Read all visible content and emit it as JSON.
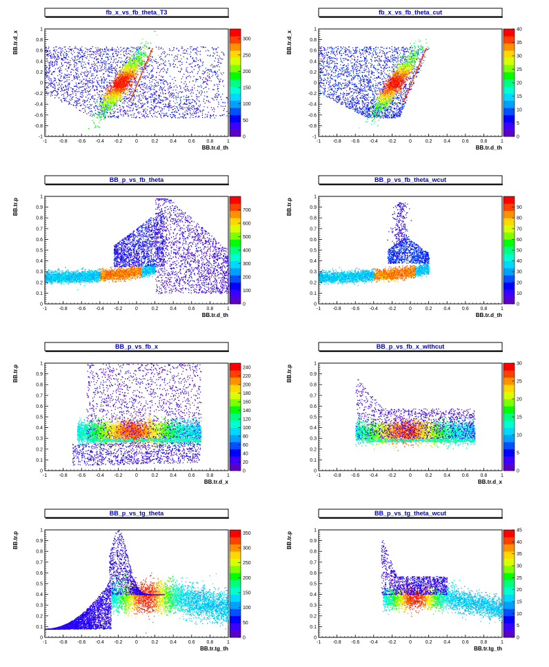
{
  "colors": {
    "title_text": "#0000cc",
    "palette": [
      "#5a00c8",
      "#3c00ff",
      "#0000ff",
      "#0050ff",
      "#00a0ff",
      "#00d8ff",
      "#00ffd0",
      "#00ff80",
      "#00ff00",
      "#80ff00",
      "#d8ff00",
      "#ffd800",
      "#ff9000",
      "#ff4000",
      "#ff0000"
    ]
  },
  "chart_data": [
    {
      "type": "heatmap",
      "title": "fb_x_vs_fb_theta_T3",
      "xlabel": "BB.tr.d_th",
      "ylabel": "BB.tr.d_x",
      "xlim": [
        -1,
        1
      ],
      "ylim": [
        -1,
        1
      ],
      "x_ticks": [
        "-1",
        "-0.8",
        "-0.6",
        "-0.4",
        "-0.2",
        "0",
        "0.2",
        "0.4",
        "0.6",
        "0.8",
        "1"
      ],
      "y_ticks": [
        "-1",
        "-0.8",
        "-0.6",
        "-0.4",
        "-0.2",
        "0",
        "0.2",
        "0.4",
        "0.6",
        "0.8",
        "1"
      ],
      "z_ticks": [
        "0",
        "50",
        "100",
        "150",
        "200",
        "250",
        "300"
      ],
      "zmax": 330,
      "grid": false
    },
    {
      "type": "heatmap",
      "title": "fb_x_vs_fb_theta_cut",
      "xlabel": "BB.tr.d_th",
      "ylabel": "BB.tr.d_x",
      "xlim": [
        -1,
        1
      ],
      "ylim": [
        -1,
        1
      ],
      "x_ticks": [
        "-1",
        "-0.8",
        "-0.6",
        "-0.4",
        "-0.2",
        "0",
        "0.2",
        "0.4",
        "0.6",
        "0.8",
        "1"
      ],
      "y_ticks": [
        "-1",
        "-0.8",
        "-0.6",
        "-0.4",
        "-0.2",
        "0",
        "0.2",
        "0.4",
        "0.6",
        "0.8",
        "1"
      ],
      "z_ticks": [
        "0",
        "5",
        "10",
        "15",
        "20",
        "25",
        "30",
        "35",
        "40"
      ],
      "zmax": 40,
      "grid": false
    },
    {
      "type": "heatmap",
      "title": "BB_p_vs_fb_theta",
      "xlabel": "BB.tr.d_th",
      "ylabel": "BB.tr.p",
      "xlim": [
        -1,
        1
      ],
      "ylim": [
        0,
        1
      ],
      "x_ticks": [
        "-1",
        "-0.8",
        "-0.6",
        "-0.4",
        "-0.2",
        "0",
        "0.2",
        "0.4",
        "0.6",
        "0.8",
        "1"
      ],
      "y_ticks": [
        "0",
        "0.1",
        "0.2",
        "0.3",
        "0.4",
        "0.5",
        "0.6",
        "0.7",
        "0.8",
        "0.9",
        "1"
      ],
      "z_ticks": [
        "0",
        "100",
        "200",
        "300",
        "400",
        "500",
        "600",
        "700"
      ],
      "zmax": 800,
      "grid": false
    },
    {
      "type": "heatmap",
      "title": "BB_p_vs_fb_theta_wcut",
      "xlabel": "BB.tr.d_th",
      "ylabel": "BB.tr.p",
      "xlim": [
        -1,
        1
      ],
      "ylim": [
        0,
        1
      ],
      "x_ticks": [
        "-1",
        "-0.8",
        "-0.6",
        "-0.4",
        "-0.2",
        "0",
        "0.2",
        "0.4",
        "0.6",
        "0.8",
        "1"
      ],
      "y_ticks": [
        "0",
        "0.1",
        "0.2",
        "0.3",
        "0.4",
        "0.5",
        "0.6",
        "0.7",
        "0.8",
        "0.9",
        "1"
      ],
      "z_ticks": [
        "0",
        "10",
        "20",
        "30",
        "40",
        "50",
        "60",
        "70",
        "80",
        "90"
      ],
      "zmax": 100,
      "grid": false
    },
    {
      "type": "heatmap",
      "title": "BB_p_vs_fb_x",
      "xlabel": "BB.tr.d_x",
      "ylabel": "BB.tr.p",
      "xlim": [
        -1,
        1
      ],
      "ylim": [
        0,
        1
      ],
      "x_ticks": [
        "-1",
        "-0.8",
        "-0.6",
        "-0.4",
        "-0.2",
        "0",
        "0.2",
        "0.4",
        "0.6",
        "0.8",
        "1"
      ],
      "y_ticks": [
        "0",
        "0.1",
        "0.2",
        "0.3",
        "0.4",
        "0.5",
        "0.6",
        "0.7",
        "0.8",
        "0.9",
        "1"
      ],
      "z_ticks": [
        "0",
        "20",
        "40",
        "60",
        "80",
        "100",
        "120",
        "140",
        "160",
        "180",
        "200",
        "220",
        "240"
      ],
      "zmax": 250,
      "grid": false
    },
    {
      "type": "heatmap",
      "title": "BB_p_vs_fb_x_withcut",
      "xlabel": "BB.tr.d_x",
      "ylabel": "BB.tr.p",
      "xlim": [
        -1,
        1
      ],
      "ylim": [
        0,
        1
      ],
      "x_ticks": [
        "-1",
        "-0.8",
        "-0.6",
        "-0.4",
        "-0.2",
        "0",
        "0.2",
        "0.4",
        "0.6",
        "0.8",
        "1"
      ],
      "y_ticks": [
        "0",
        "0.1",
        "0.2",
        "0.3",
        "0.4",
        "0.5",
        "0.6",
        "0.7",
        "0.8",
        "0.9",
        "1"
      ],
      "z_ticks": [
        "0",
        "5",
        "10",
        "15",
        "20",
        "25",
        "30"
      ],
      "zmax": 30,
      "grid": false
    },
    {
      "type": "heatmap",
      "title": "BB_p_vs_tg_theta",
      "xlabel": "BB.tr.tg_th",
      "ylabel": "BB.tr.p",
      "xlim": [
        -1,
        1
      ],
      "ylim": [
        0,
        1
      ],
      "x_ticks": [
        "-1",
        "-0.8",
        "-0.6",
        "-0.4",
        "-0.2",
        "0",
        "0.2",
        "0.4",
        "0.6",
        "0.8",
        "1"
      ],
      "y_ticks": [
        "0",
        "0.1",
        "0.2",
        "0.3",
        "0.4",
        "0.5",
        "0.6",
        "0.7",
        "0.8",
        "0.9",
        "1"
      ],
      "z_ticks": [
        "0",
        "50",
        "100",
        "150",
        "200",
        "250",
        "300",
        "350"
      ],
      "zmax": 360,
      "grid": false
    },
    {
      "type": "heatmap",
      "title": "BB_p_vs_tg_theta_wcut",
      "xlabel": "BB.tr.tg_th",
      "ylabel": "BB.tr.p",
      "xlim": [
        -1,
        1
      ],
      "ylim": [
        0,
        1
      ],
      "x_ticks": [
        "-1",
        "-0.8",
        "-0.6",
        "-0.4",
        "-0.2",
        "0",
        "0.2",
        "0.4",
        "0.6",
        "0.8",
        "1"
      ],
      "y_ticks": [
        "0",
        "0.1",
        "0.2",
        "0.3",
        "0.4",
        "0.5",
        "0.6",
        "0.7",
        "0.8",
        "0.9",
        "1"
      ],
      "z_ticks": [
        "0",
        "5",
        "10",
        "15",
        "20",
        "25",
        "30",
        "35",
        "40",
        "45"
      ],
      "zmax": 45,
      "grid": false
    }
  ]
}
